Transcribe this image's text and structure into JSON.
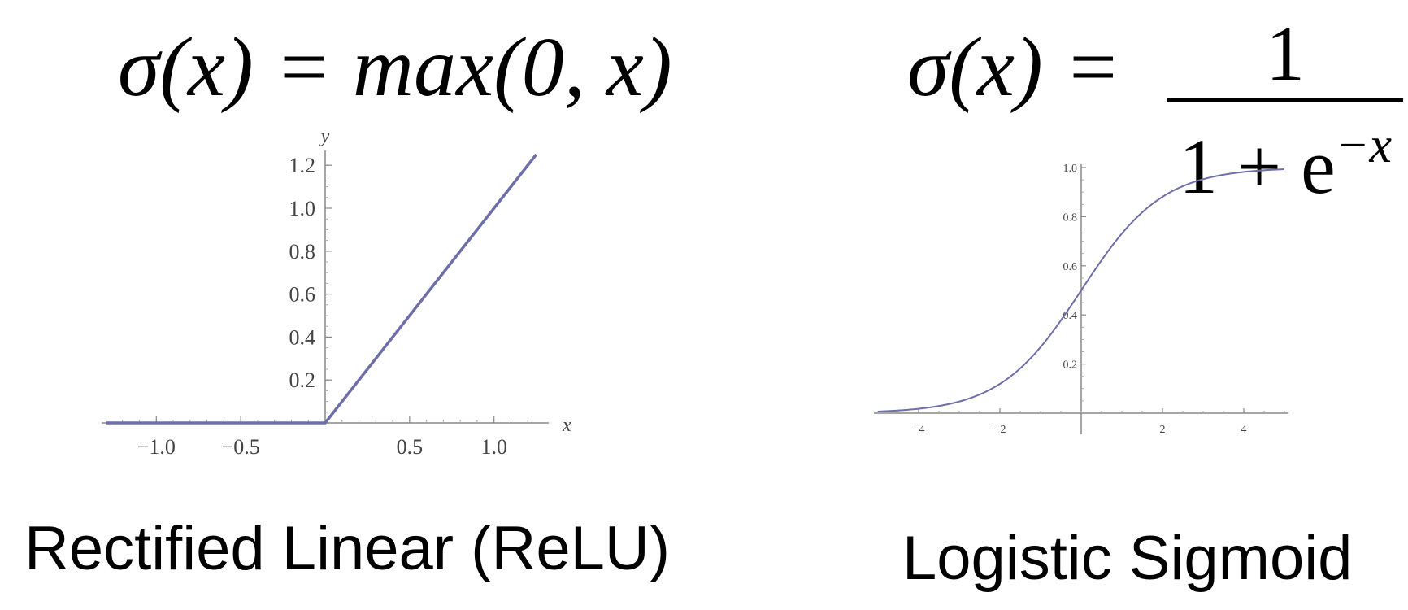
{
  "relu": {
    "formula_lhs": "σ(x) = max(0, x)",
    "caption": "Rectified Linear (ReLU)"
  },
  "sigmoid": {
    "formula_lhs": "σ(x) = ",
    "formula_numerator": "1",
    "formula_denominator_base": "1 + e",
    "formula_denominator_exp": "−x",
    "caption": "Logistic Sigmoid"
  },
  "chart_data": [
    {
      "type": "line",
      "xlabel": "x",
      "ylabel": "y",
      "xlim": [
        -1.3,
        1.3
      ],
      "ylim": [
        0,
        1.25
      ],
      "x_ticks": [
        "−1.0",
        "−0.5",
        "0.5",
        "1.0"
      ],
      "x_tick_values": [
        -1.0,
        -0.5,
        0.5,
        1.0
      ],
      "y_ticks": [
        "0.2",
        "0.4",
        "0.6",
        "0.8",
        "1.0",
        "1.2"
      ],
      "y_tick_values": [
        0.2,
        0.4,
        0.6,
        0.8,
        1.0,
        1.2
      ],
      "series": [
        {
          "x": [
            -1.3,
            0,
            1.25
          ],
          "y": [
            0,
            0,
            1.25
          ]
        }
      ],
      "line_color": "#6e6ea8"
    },
    {
      "type": "line",
      "xlabel": "",
      "ylabel": "",
      "xlim": [
        -5,
        5
      ],
      "ylim": [
        0,
        1.0
      ],
      "x_ticks": [
        "−4",
        "−2",
        "2",
        "4"
      ],
      "x_tick_values": [
        -4,
        -2,
        2,
        4
      ],
      "y_ticks": [
        "0.2",
        "0.4",
        "0.6",
        "0.8",
        "1.0"
      ],
      "y_tick_values": [
        0.2,
        0.4,
        0.6,
        0.8,
        1.0
      ],
      "series": [
        {
          "function": "logistic",
          "x_range": [
            -5,
            5
          ]
        }
      ],
      "line_color": "#6e6ea8"
    }
  ]
}
